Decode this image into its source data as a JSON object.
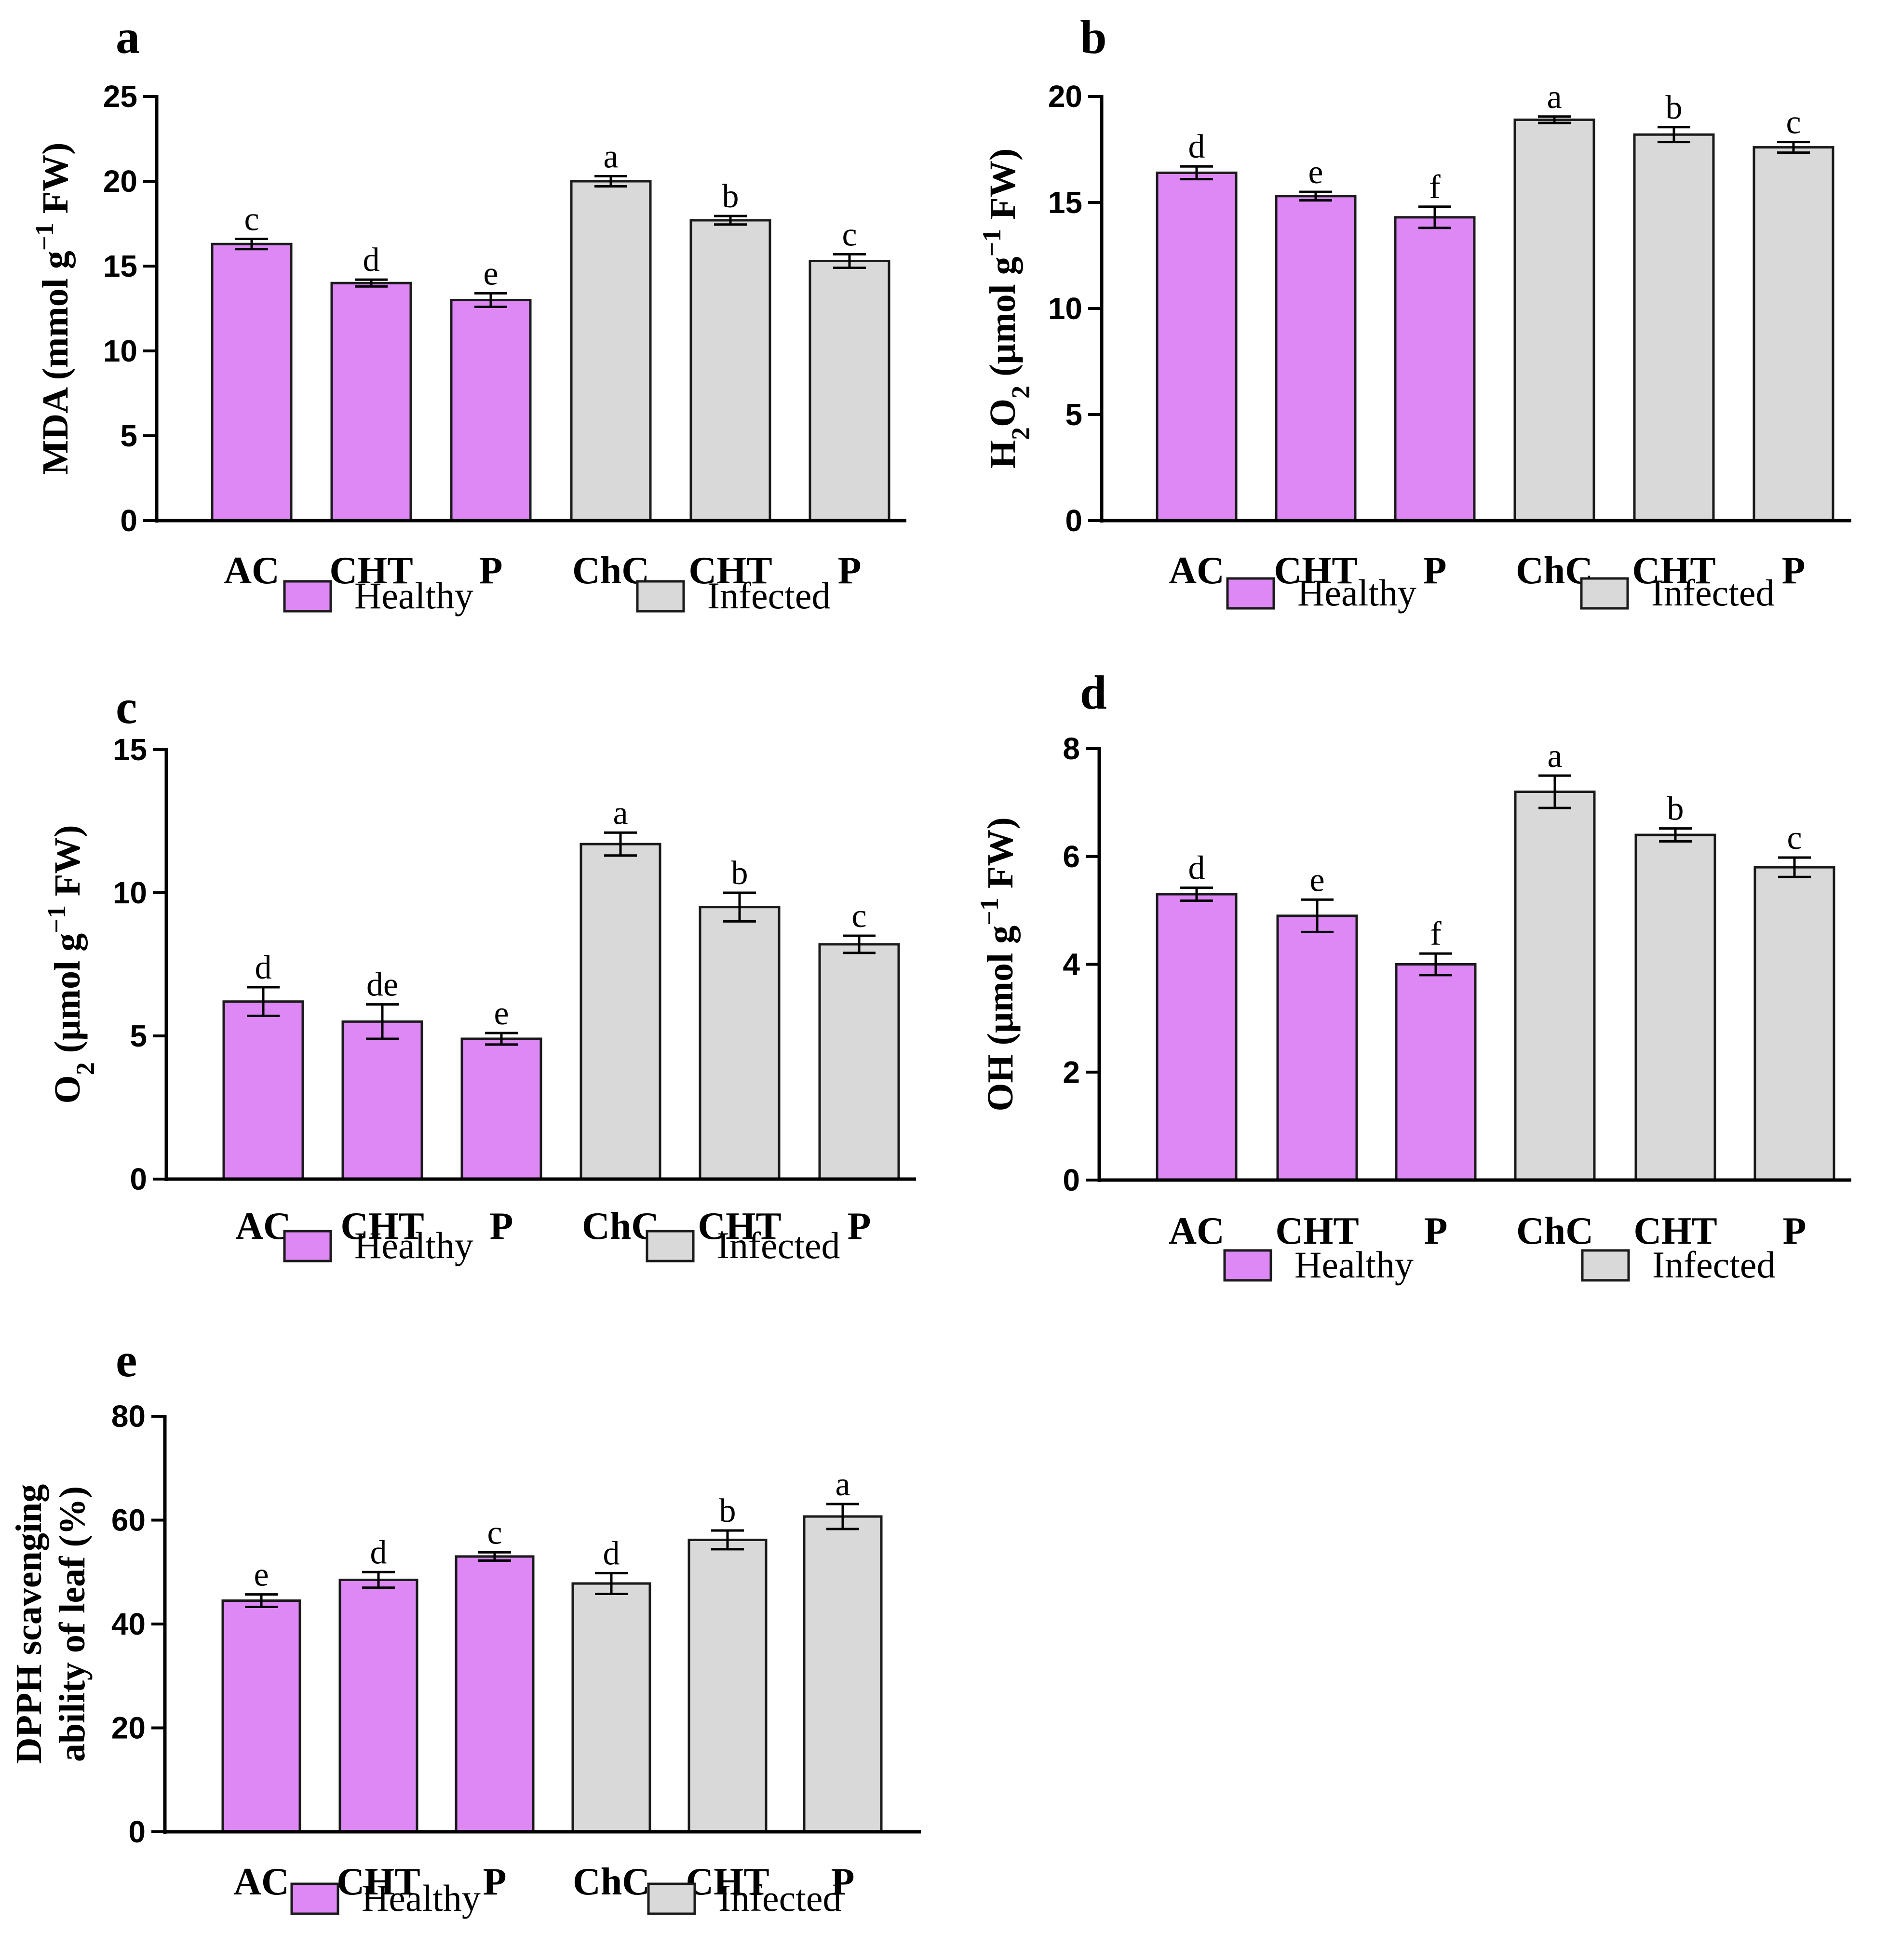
{
  "colors": {
    "healthy": "#dd88f5",
    "infected": "#d9d9d9",
    "axis": "#000000",
    "bar_stroke": "#1a1a1a"
  },
  "legend": {
    "healthy": "Healthy",
    "infected": "Infected"
  },
  "chart_data": [
    {
      "panel": "a",
      "type": "bar",
      "categories": [
        "AC",
        "CHT",
        "P",
        "ChC",
        "CHT",
        "P"
      ],
      "groups": [
        "Healthy",
        "Healthy",
        "Healthy",
        "Infected",
        "Infected",
        "Infected"
      ],
      "values": [
        16.3,
        14.0,
        13.0,
        20.0,
        17.7,
        15.3
      ],
      "errors": [
        0.3,
        0.2,
        0.4,
        0.3,
        0.25,
        0.4
      ],
      "letters": [
        "c",
        "d",
        "e",
        "a",
        "b",
        "c"
      ],
      "ylabel_parts": [
        "MDA (mmol g",
        "−1",
        " FW)"
      ],
      "ylim": [
        0,
        25
      ],
      "yticks": [
        0,
        5,
        10,
        15,
        20,
        25
      ]
    },
    {
      "panel": "b",
      "type": "bar",
      "categories": [
        "AC",
        "CHT",
        "P",
        "ChC",
        "CHT",
        "P"
      ],
      "groups": [
        "Healthy",
        "Healthy",
        "Healthy",
        "Infected",
        "Infected",
        "Infected"
      ],
      "values": [
        16.4,
        15.3,
        14.3,
        18.9,
        18.2,
        17.6
      ],
      "errors": [
        0.3,
        0.2,
        0.5,
        0.15,
        0.35,
        0.25
      ],
      "letters": [
        "d",
        "e",
        "f",
        "a",
        "b",
        "c"
      ],
      "ylabel_parts": [
        "H",
        "2",
        "O",
        "2",
        " (µmol g",
        "−1",
        " FW)"
      ],
      "ylim": [
        0,
        20
      ],
      "yticks": [
        0,
        5,
        10,
        15,
        20
      ]
    },
    {
      "panel": "c",
      "type": "bar",
      "categories": [
        "AC",
        "CHT",
        "P",
        "ChC",
        "CHT",
        "P"
      ],
      "groups": [
        "Healthy",
        "Healthy",
        "Healthy",
        "Infected",
        "Infected",
        "Infected"
      ],
      "values": [
        6.2,
        5.5,
        4.9,
        11.7,
        9.5,
        8.2
      ],
      "errors": [
        0.5,
        0.6,
        0.2,
        0.4,
        0.5,
        0.3
      ],
      "letters": [
        "d",
        "de",
        "e",
        "a",
        "b",
        "c"
      ],
      "ylabel_parts": [
        "O",
        "2",
        " (µmol g",
        "−1",
        " FW)"
      ],
      "ylim": [
        0,
        15
      ],
      "yticks": [
        0,
        5,
        10,
        15
      ]
    },
    {
      "panel": "d",
      "type": "bar",
      "categories": [
        "AC",
        "CHT",
        "P",
        "ChC",
        "CHT",
        "P"
      ],
      "groups": [
        "Healthy",
        "Healthy",
        "Healthy",
        "Infected",
        "Infected",
        "Infected"
      ],
      "values": [
        5.3,
        4.9,
        4.0,
        7.2,
        6.4,
        5.8
      ],
      "errors": [
        0.12,
        0.3,
        0.2,
        0.3,
        0.12,
        0.18
      ],
      "letters": [
        "d",
        "e",
        "f",
        "a",
        "b",
        "c"
      ],
      "ylabel_parts": [
        "OH (µmol g",
        "−1",
        " FW)"
      ],
      "ylim": [
        0,
        8
      ],
      "yticks": [
        0,
        2,
        4,
        6,
        8
      ]
    },
    {
      "panel": "e",
      "type": "bar",
      "categories": [
        "AC",
        "CHT",
        "P",
        "ChC",
        "CHT",
        "P"
      ],
      "groups": [
        "Healthy",
        "Healthy",
        "Healthy",
        "Infected",
        "Infected",
        "Infected"
      ],
      "values": [
        44.5,
        48.5,
        53.0,
        47.8,
        56.2,
        60.7
      ],
      "errors": [
        1.2,
        1.5,
        0.8,
        2.0,
        1.8,
        2.4
      ],
      "letters": [
        "e",
        "d",
        "c",
        "d",
        "b",
        "a"
      ],
      "ylabel_lines": [
        "DPPH scavenging",
        "ability of leaf  (%)"
      ],
      "ylim": [
        0,
        80
      ],
      "yticks": [
        0,
        20,
        40,
        60,
        80
      ]
    }
  ]
}
